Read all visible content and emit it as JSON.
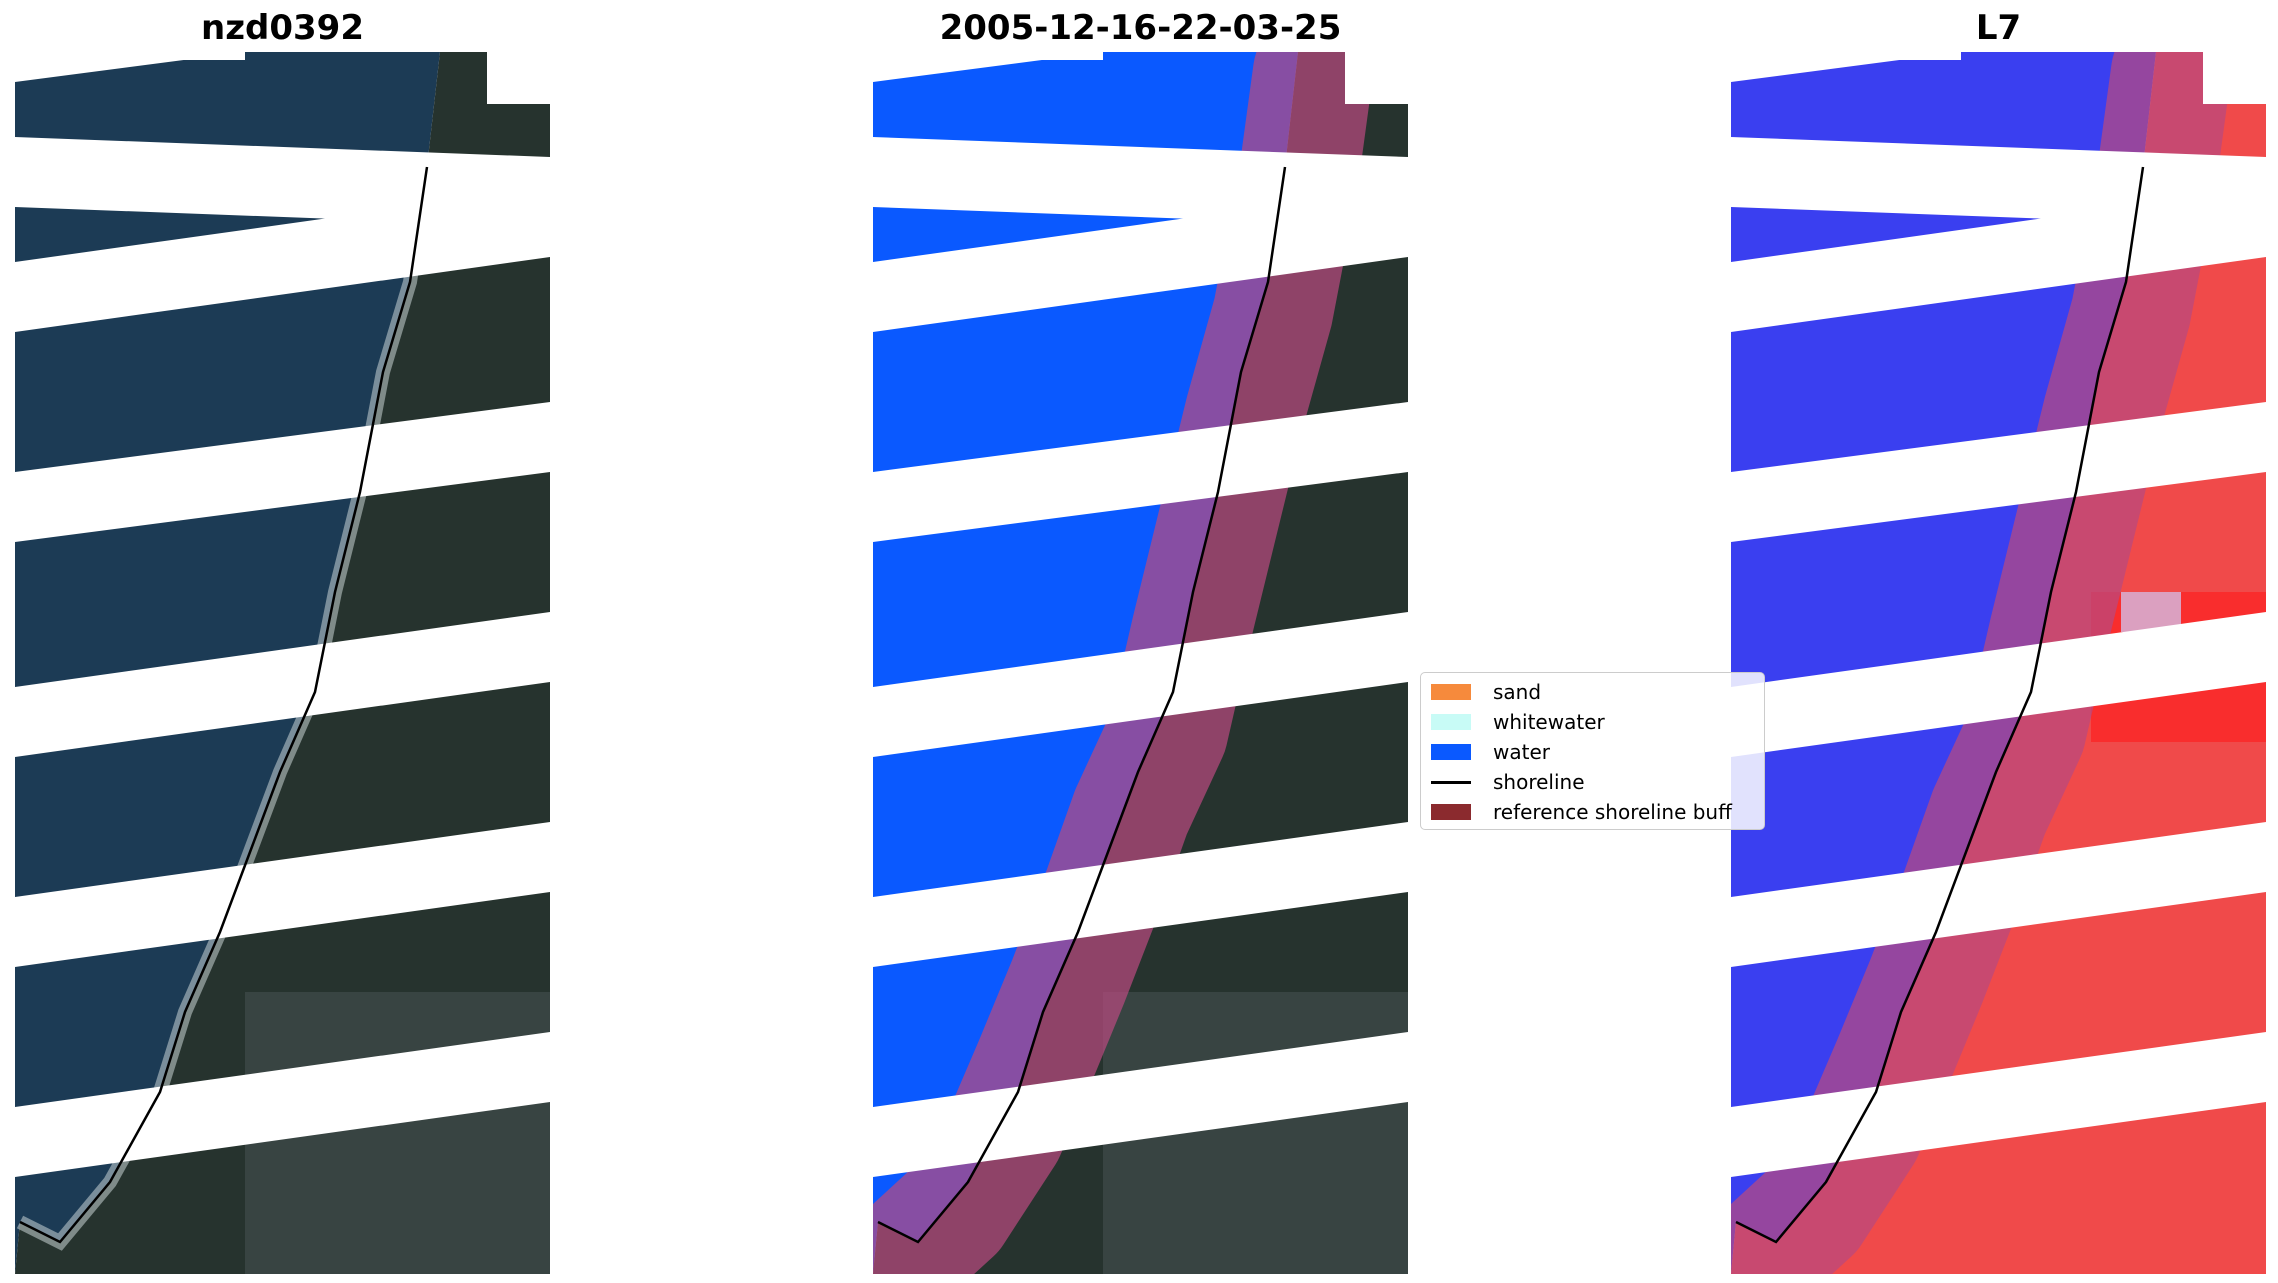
{
  "panels": [
    {
      "title": "nzd0392",
      "kind": "rgb"
    },
    {
      "title": "2005-12-16-22-03-25",
      "kind": "classified"
    },
    {
      "title": "L7",
      "kind": "index"
    }
  ],
  "legend": {
    "items": [
      {
        "label": "sand",
        "color": "#f68a3c",
        "type": "patch"
      },
      {
        "label": "whitewater",
        "color": "#c8fbf6",
        "type": "patch"
      },
      {
        "label": "water",
        "color": "#0a59ff",
        "type": "patch"
      },
      {
        "label": "shoreline",
        "color": "#000000",
        "type": "line"
      },
      {
        "label": "reference shoreline buff",
        "color": "#8b2a2e",
        "type": "patch"
      }
    ]
  },
  "colors": {
    "land": "#26332e",
    "ocean": "#1c3b55",
    "water_class": "#0a59ff",
    "buffer": "#b84a7f",
    "index_water": "#3a3ff0",
    "index_land": "#f04a4a"
  }
}
